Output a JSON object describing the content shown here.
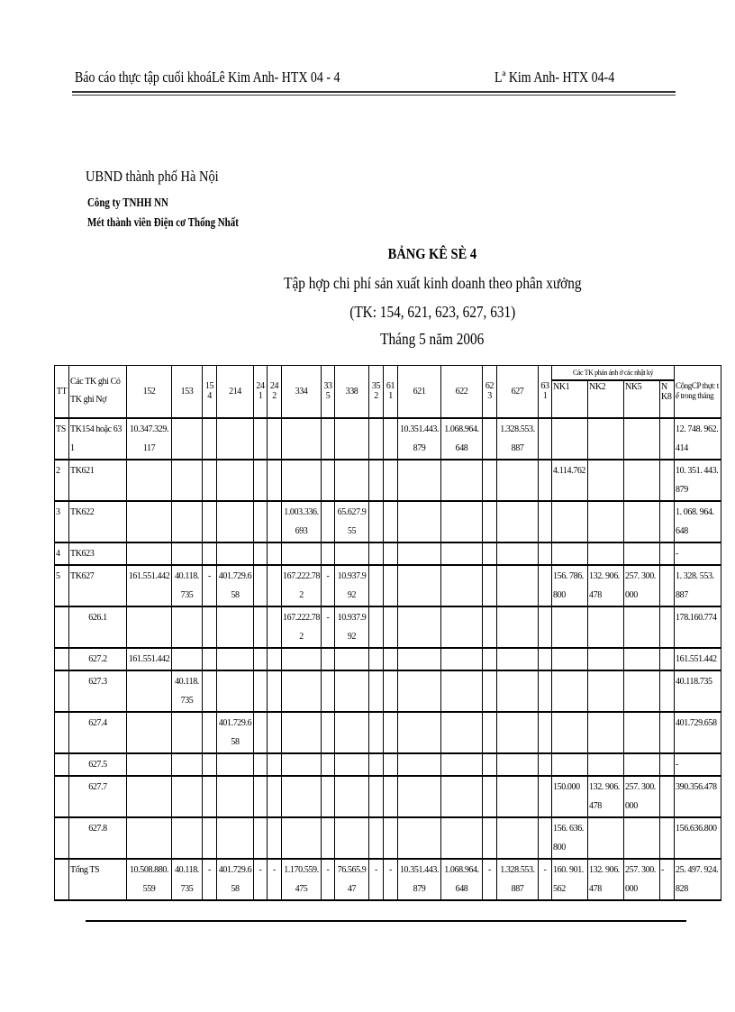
{
  "page_header": {
    "left": "Báo cáo thực tập cuối khoáLê Kim Anh- HTX 04 - 4",
    "right": "Lª Kim Anh- HTX 04-4"
  },
  "organization": {
    "line1": "UBND thành phố Hà Nội",
    "line2": "Công ty TNHH   NN",
    "line3": "Mét thành viên Điện cơ Thống Nhất"
  },
  "title": {
    "main": "BẢNG KÊ SÈ 4",
    "subtitle": "Tập hợp chi phí sản xuất kinh  doanh theo phân xưởng",
    "accounts": "(TK: 154, 621, 623, 627, 631)",
    "period": "Tháng 5 năm 2006"
  },
  "table": {
    "header": {
      "tt": "TT",
      "desc": "Các TK ghi Có\nTK ghi Nợ",
      "accounts": [
        "152",
        "153",
        "154",
        "214",
        "241",
        "242",
        "334",
        "335",
        "338",
        "352",
        "611",
        "621",
        "622",
        "623",
        "627",
        "631"
      ],
      "journal_group": "Các TK phản ánh ở các nhật ký",
      "journals": [
        "NK1",
        "NK2",
        "NK5",
        "NK8"
      ],
      "total": "CộngCP thực tế trong tháng"
    },
    "rows": [
      [
        "TS",
        "TK154 hoặc 631",
        "10.347.329.117",
        "",
        "",
        "",
        "",
        "",
        "",
        "",
        "",
        "",
        "",
        "10.351.443.879",
        "1.068.964.648",
        "",
        "1.328.553.887",
        "",
        "",
        "",
        "",
        "",
        "12. 748. 962. 414"
      ],
      [
        "2",
        "TK621",
        "",
        "",
        "",
        "",
        "",
        "",
        "",
        "",
        "",
        "",
        "",
        "",
        "",
        "",
        "",
        "",
        "4.114.762",
        "",
        "",
        "",
        "10. 351. 443. 879"
      ],
      [
        "3",
        "TK622",
        "",
        "",
        "",
        "",
        "",
        "",
        "1.003.336.693",
        "",
        "65.627.955",
        "",
        "",
        "",
        "",
        "",
        "",
        "",
        "",
        "",
        "",
        "",
        "1. 068. 964. 648"
      ],
      [
        "4",
        "TK623",
        "",
        "",
        "",
        "",
        "",
        "",
        "",
        "",
        "",
        "",
        "",
        "",
        "",
        "",
        "",
        "",
        "",
        "",
        "",
        "",
        "-"
      ],
      [
        "5",
        "TK627",
        "161.551.442",
        "40.118.735",
        "-",
        "401.729.658",
        "",
        "",
        "167.222.782",
        "-",
        "10.937.992",
        "",
        "",
        "",
        "",
        "",
        "",
        "",
        "156. 786. 800",
        "132. 906. 478",
        "257. 300. 000",
        "",
        "1. 328. 553. 887"
      ],
      [
        "",
        "626.1",
        "",
        "",
        "",
        "",
        "",
        "",
        "167.222.782",
        "-",
        "10.937.992",
        "",
        "",
        "",
        "",
        "",
        "",
        "",
        "",
        "",
        "",
        "",
        "178.160.774"
      ],
      [
        "",
        "627.2",
        "161.551.442",
        "",
        "",
        "",
        "",
        "",
        "",
        "",
        "",
        "",
        "",
        "",
        "",
        "",
        "",
        "",
        "",
        "",
        "",
        "",
        "161.551.442"
      ],
      [
        "",
        "627.3",
        "",
        "40.118.735",
        "",
        "",
        "",
        "",
        "",
        "",
        "",
        "",
        "",
        "",
        "",
        "",
        "",
        "",
        "",
        "",
        "",
        "",
        "40.118.735"
      ],
      [
        "",
        "627.4",
        "",
        "",
        "",
        "401.729.658",
        "",
        "",
        "",
        "",
        "",
        "",
        "",
        "",
        "",
        "",
        "",
        "",
        "",
        "",
        "",
        "",
        "401.729.658"
      ],
      [
        "",
        "627.5",
        "",
        "",
        "",
        "",
        "",
        "",
        "",
        "",
        "",
        "",
        "",
        "",
        "",
        "",
        "",
        "",
        "",
        "",
        "",
        "",
        "-"
      ],
      [
        "",
        "627.7",
        "",
        "",
        "",
        "",
        "",
        "",
        "",
        "",
        "",
        "",
        "",
        "",
        "",
        "",
        "",
        "",
        "150.000",
        "132. 906. 478",
        "257. 300. 000",
        "",
        "390.356.478"
      ],
      [
        "",
        "627.8",
        "",
        "",
        "",
        "",
        "",
        "",
        "",
        "",
        "",
        "",
        "",
        "",
        "",
        "",
        "",
        "",
        "156. 636. 800",
        "",
        "",
        "",
        "156.636.800"
      ],
      [
        "",
        "Tổng TS",
        "10.508.880.559",
        "40.118.735",
        "-",
        "401.729.658",
        "-",
        "-",
        "1.170.559.475",
        "-",
        "76.565.947",
        "-",
        "-",
        "10.351.443.879",
        "1.068.964.648",
        "-",
        "1.328.553.887",
        "-",
        "160. 901. 562",
        "132. 906. 478",
        "257. 300. 000",
        "-",
        "25. 497. 924. 828"
      ]
    ]
  }
}
